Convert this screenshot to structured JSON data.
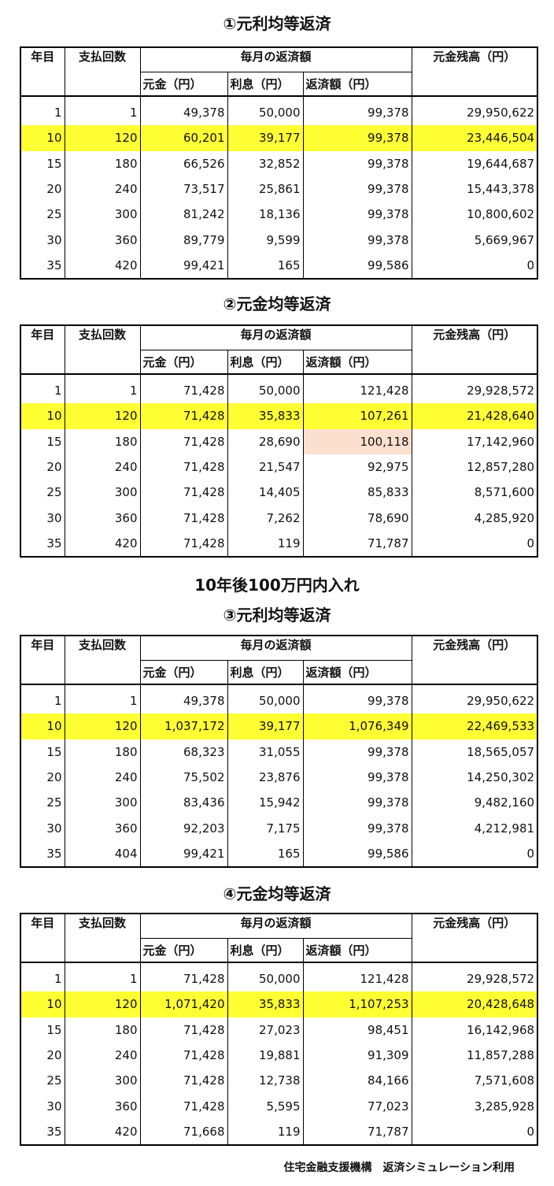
{
  "headers": {
    "year": "年目",
    "count": "支払回数",
    "monthly": "毎月の返済額",
    "principal": "元金（円）",
    "interest": "利息（円）",
    "payment": "返済額（円）",
    "balance": "元金残高（円）"
  },
  "section_heading": "10年後100万円内入れ",
  "footer": "住宅金融支援機構　返済シミュレーション利用",
  "colors": {
    "highlight": "#ffff33",
    "peach": "#fbe0d0"
  },
  "tables": [
    {
      "title": "①元利均等返済",
      "rows": [
        [
          "1",
          "1",
          "49,378",
          "50,000",
          "99,378",
          "29,950,622"
        ],
        [
          "10",
          "120",
          "60,201",
          "39,177",
          "99,378",
          "23,446,504"
        ],
        [
          "15",
          "180",
          "66,526",
          "32,852",
          "99,378",
          "19,644,687"
        ],
        [
          "20",
          "240",
          "73,517",
          "25,861",
          "99,378",
          "15,443,378"
        ],
        [
          "25",
          "300",
          "81,242",
          "18,136",
          "99,378",
          "10,800,602"
        ],
        [
          "30",
          "360",
          "89,779",
          "9,599",
          "99,378",
          "5,669,967"
        ],
        [
          "35",
          "420",
          "99,421",
          "165",
          "99,586",
          "0"
        ]
      ]
    },
    {
      "title": "②元金均等返済",
      "rows": [
        [
          "1",
          "1",
          "71,428",
          "50,000",
          "121,428",
          "29,928,572"
        ],
        [
          "10",
          "120",
          "71,428",
          "35,833",
          "107,261",
          "21,428,640"
        ],
        [
          "15",
          "180",
          "71,428",
          "28,690",
          "100,118",
          "17,142,960"
        ],
        [
          "20",
          "240",
          "71,428",
          "21,547",
          "92,975",
          "12,857,280"
        ],
        [
          "25",
          "300",
          "71,428",
          "14,405",
          "85,833",
          "8,571,600"
        ],
        [
          "30",
          "360",
          "71,428",
          "7,262",
          "78,690",
          "4,285,920"
        ],
        [
          "35",
          "420",
          "71,428",
          "119",
          "71,787",
          "0"
        ]
      ]
    },
    {
      "title": "③元利均等返済",
      "rows": [
        [
          "1",
          "1",
          "49,378",
          "50,000",
          "99,378",
          "29,950,622"
        ],
        [
          "10",
          "120",
          "1,037,172",
          "39,177",
          "1,076,349",
          "22,469,533"
        ],
        [
          "15",
          "180",
          "68,323",
          "31,055",
          "99,378",
          "18,565,057"
        ],
        [
          "20",
          "240",
          "75,502",
          "23,876",
          "99,378",
          "14,250,302"
        ],
        [
          "25",
          "300",
          "83,436",
          "15,942",
          "99,378",
          "9,482,160"
        ],
        [
          "30",
          "360",
          "92,203",
          "7,175",
          "99,378",
          "4,212,981"
        ],
        [
          "35",
          "404",
          "99,421",
          "165",
          "99,586",
          "0"
        ]
      ]
    },
    {
      "title": "④元金均等返済",
      "rows": [
        [
          "1",
          "1",
          "71,428",
          "50,000",
          "121,428",
          "29,928,572"
        ],
        [
          "10",
          "120",
          "1,071,420",
          "35,833",
          "1,107,253",
          "20,428,648"
        ],
        [
          "15",
          "180",
          "71,428",
          "27,023",
          "98,451",
          "16,142,968"
        ],
        [
          "20",
          "240",
          "71,428",
          "19,881",
          "91,309",
          "11,857,288"
        ],
        [
          "25",
          "300",
          "71,428",
          "12,738",
          "84,166",
          "7,571,608"
        ],
        [
          "30",
          "360",
          "71,428",
          "5,595",
          "77,023",
          "3,285,928"
        ],
        [
          "35",
          "420",
          "71,668",
          "119",
          "71,787",
          "0"
        ]
      ]
    }
  ]
}
